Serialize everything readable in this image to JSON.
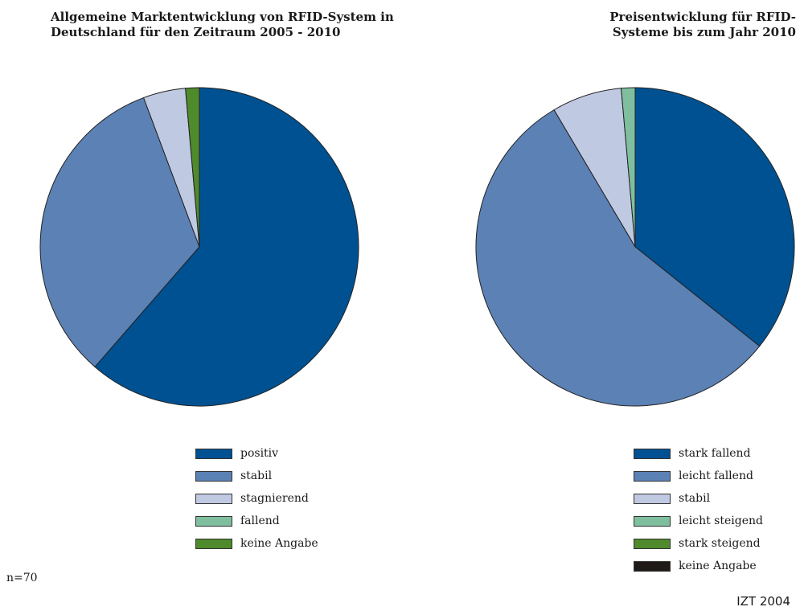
{
  "chart_data": [
    {
      "type": "pie",
      "title": "Allgemeine Marktentwicklung von RFID-System in Deutschland für den Zeitraum 2005 - 2010",
      "categories": [
        "positiv",
        "stabil",
        "stagnierend",
        "fallend",
        "keine Angabe"
      ],
      "values": [
        61.4,
        32.9,
        4.3,
        0,
        1.4
      ],
      "colors": [
        "#005191",
        "#5b81b5",
        "#c0c9e2",
        "#7fbf9f",
        "#4f8a2c"
      ],
      "legend_position": "bottom"
    },
    {
      "type": "pie",
      "title": "Preisentwicklung für RFID-Systeme bis zum Jahr 2010",
      "categories": [
        "stark fallend",
        "leicht fallend",
        "stabil",
        "leicht steigend",
        "stark steigend",
        "keine Angabe"
      ],
      "values": [
        35.7,
        55.7,
        7.1,
        1.4,
        0,
        0
      ],
      "colors": [
        "#005191",
        "#5b81b5",
        "#c0c9e2",
        "#7fbf9f",
        "#4f8a2c",
        "#1f1a17"
      ],
      "legend_position": "bottom"
    }
  ],
  "footer": {
    "sample": "n=70",
    "credit": "IZT 2004"
  }
}
